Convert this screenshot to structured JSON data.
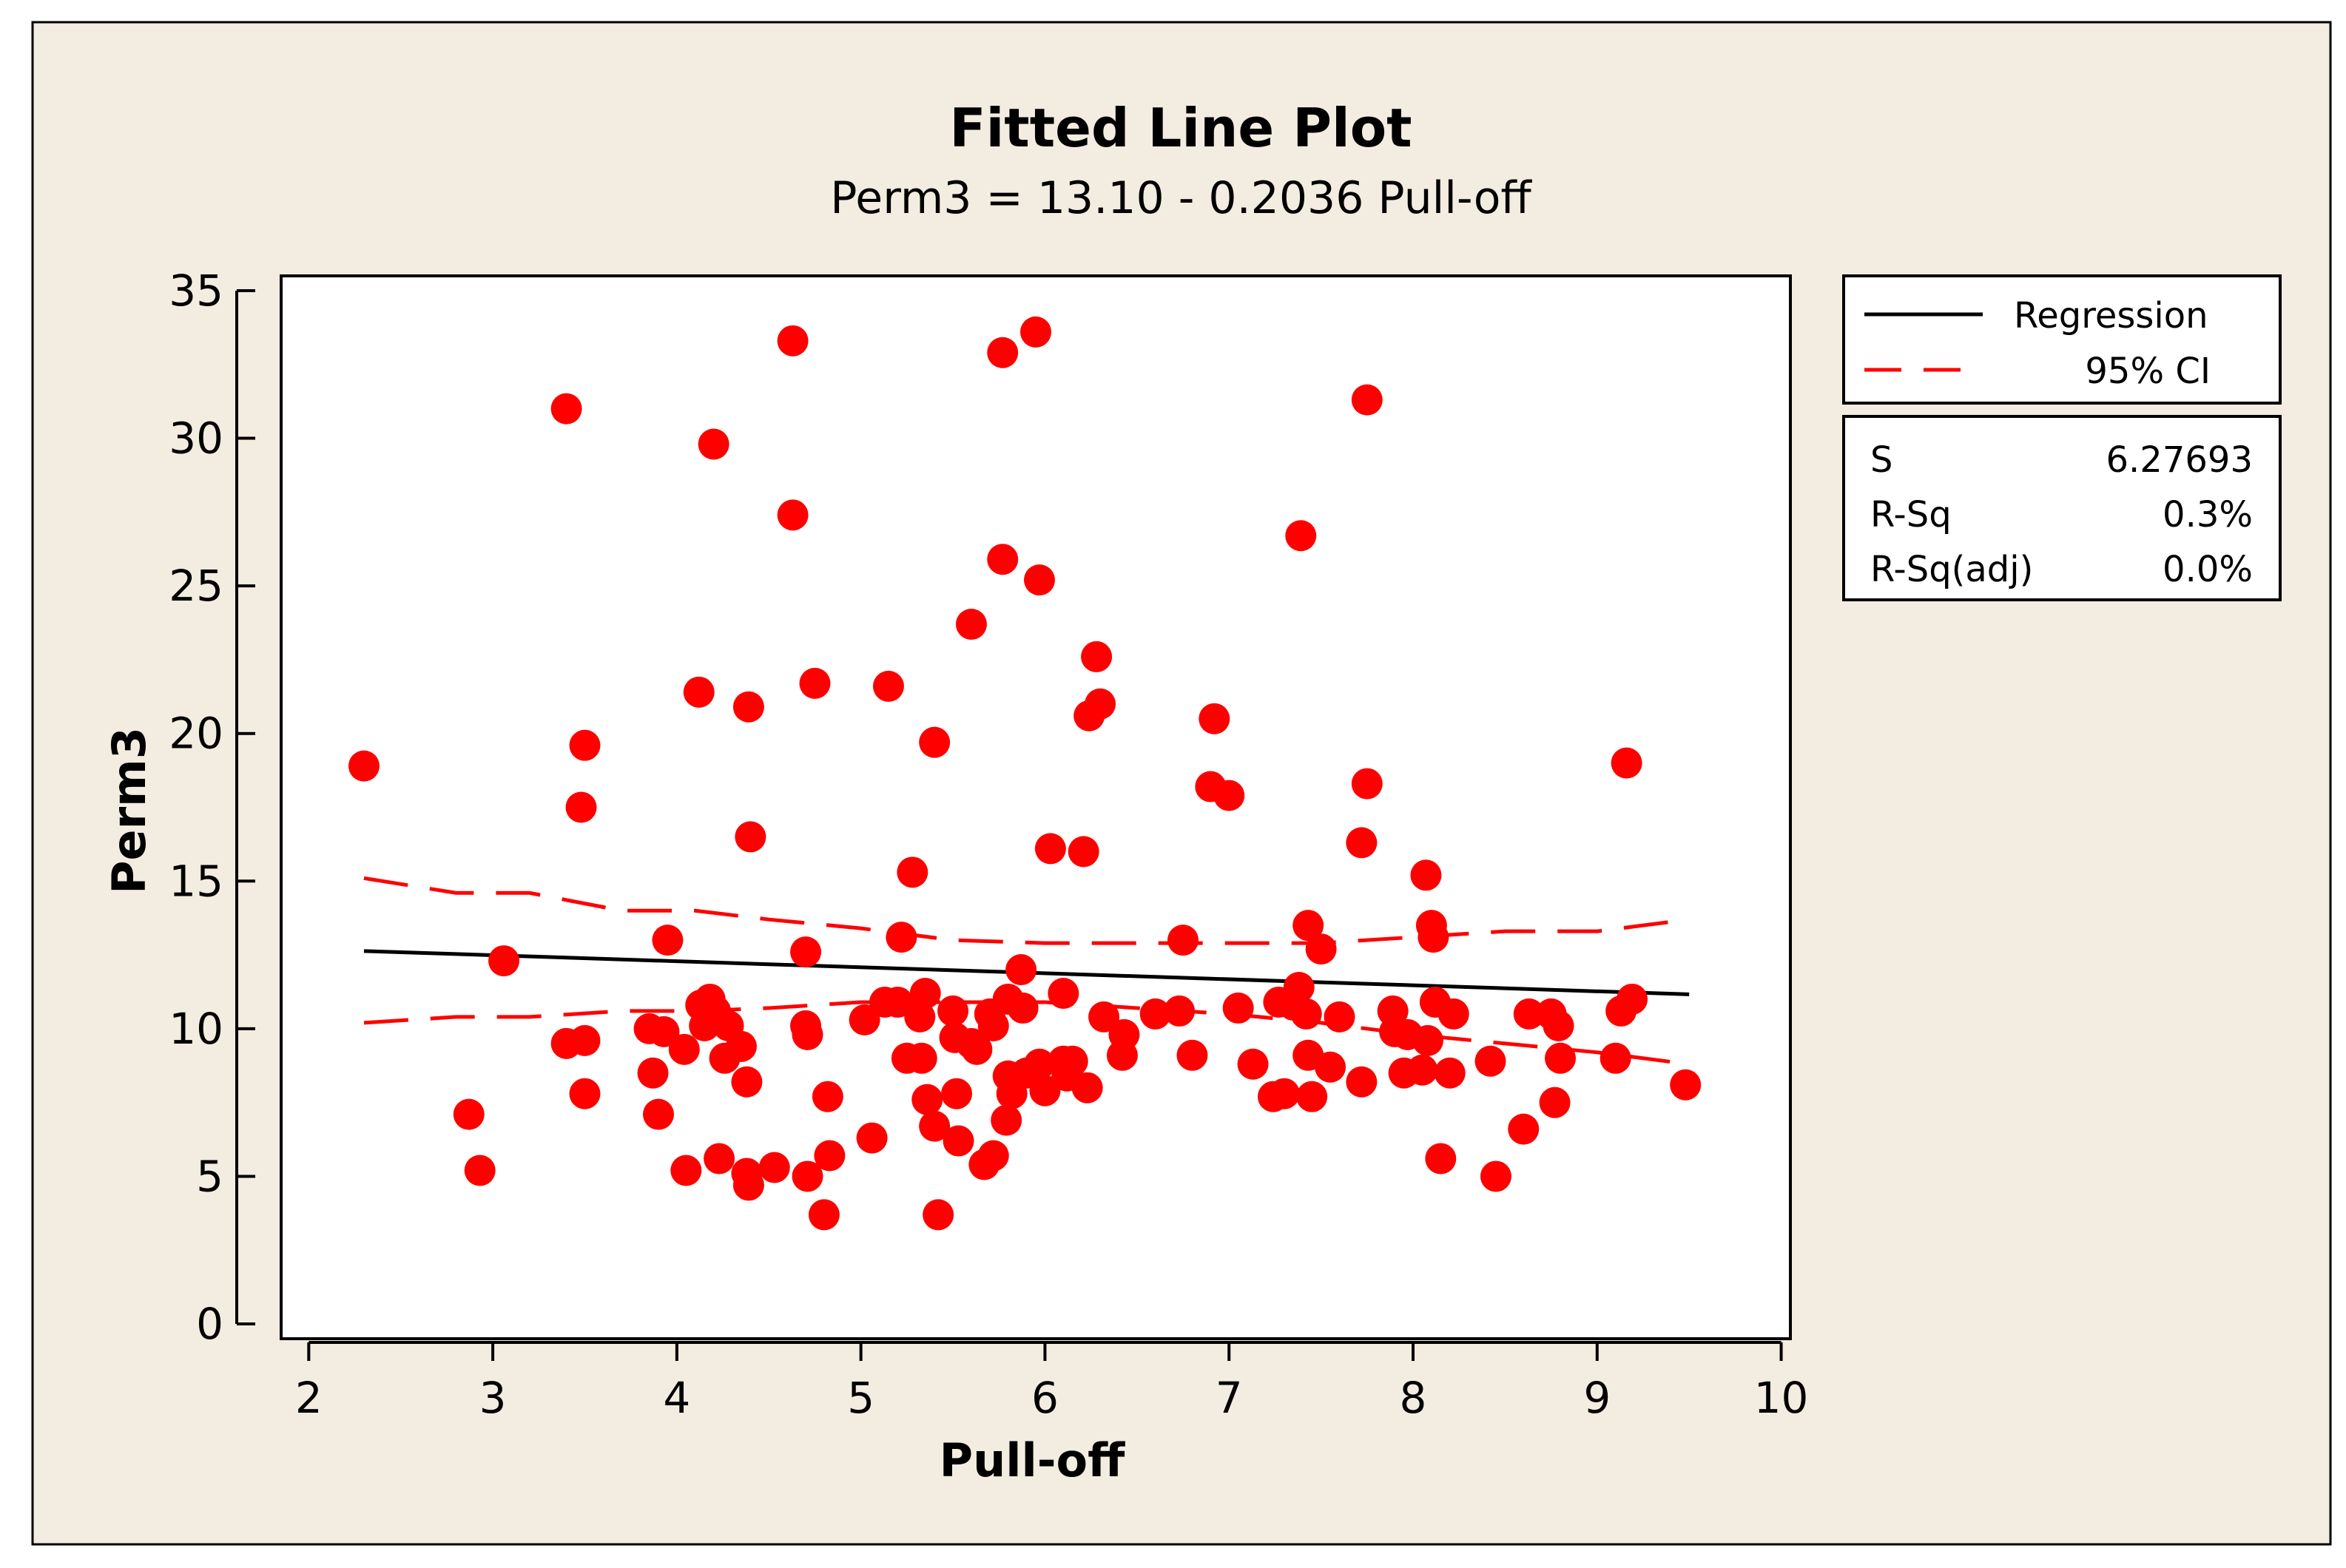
{
  "colors": {
    "frame_bg": "#F3ECE0",
    "plot_bg": "#FFFFFF",
    "point": "#FF0000",
    "regression": "#000000",
    "ci": "#FF0000"
  },
  "chart_data": {
    "type": "scatter",
    "title": "Fitted Line Plot",
    "subtitle": "Perm3 =  13.10 - 0.2036 Pull-off",
    "xlabel": "Pull-off",
    "ylabel": "Perm3",
    "xlim": [
      1.85,
      10.05
    ],
    "ylim": [
      -0.5,
      35.5
    ],
    "xticks": [
      2,
      3,
      4,
      5,
      6,
      7,
      8,
      9,
      10
    ],
    "yticks": [
      0,
      5,
      10,
      15,
      20,
      25,
      30,
      35
    ],
    "legend": {
      "position": "top-right",
      "entries": [
        {
          "label": "Regression",
          "style": "solid",
          "color": "#000000"
        },
        {
          "label": "95% CI",
          "style": "dashed",
          "color": "#FF0000"
        }
      ]
    },
    "stats": [
      {
        "label": "S",
        "value": "6.27693"
      },
      {
        "label": "R-Sq",
        "value": "0.3%"
      },
      {
        "label": "R-Sq(adj)",
        "value": "0.0%"
      }
    ],
    "regression": {
      "intercept": 13.1,
      "slope": -0.2036,
      "x_range": [
        2.3,
        9.5
      ]
    },
    "ci_upper": [
      [
        2.3,
        15.1
      ],
      [
        2.8,
        14.6
      ],
      [
        3.2,
        14.6
      ],
      [
        3.7,
        14.0
      ],
      [
        4.1,
        14.0
      ],
      [
        4.5,
        13.7
      ],
      [
        5.0,
        13.4
      ],
      [
        5.5,
        13.0
      ],
      [
        6.0,
        12.9
      ],
      [
        6.5,
        12.9
      ],
      [
        7.0,
        12.9
      ],
      [
        7.5,
        12.9
      ],
      [
        8.0,
        13.1
      ],
      [
        8.5,
        13.3
      ],
      [
        9.0,
        13.3
      ],
      [
        9.5,
        13.7
      ]
    ],
    "ci_lower": [
      [
        2.3,
        10.2
      ],
      [
        2.8,
        10.4
      ],
      [
        3.2,
        10.4
      ],
      [
        3.7,
        10.6
      ],
      [
        4.1,
        10.6
      ],
      [
        4.5,
        10.7
      ],
      [
        5.0,
        10.9
      ],
      [
        5.5,
        10.9
      ],
      [
        6.0,
        10.9
      ],
      [
        6.5,
        10.7
      ],
      [
        7.0,
        10.5
      ],
      [
        7.5,
        10.2
      ],
      [
        8.0,
        9.8
      ],
      [
        8.5,
        9.5
      ],
      [
        9.0,
        9.2
      ],
      [
        9.5,
        8.8
      ]
    ],
    "points": [
      {
        "x": 2.3,
        "y": 18.9
      },
      {
        "x": 2.87,
        "y": 7.1
      },
      {
        "x": 2.93,
        "y": 5.2
      },
      {
        "x": 3.06,
        "y": 12.3
      },
      {
        "x": 3.4,
        "y": 31.0
      },
      {
        "x": 3.4,
        "y": 9.5
      },
      {
        "x": 3.48,
        "y": 17.5
      },
      {
        "x": 3.5,
        "y": 19.6
      },
      {
        "x": 3.5,
        "y": 9.6
      },
      {
        "x": 3.5,
        "y": 7.8
      },
      {
        "x": 3.85,
        "y": 10.0
      },
      {
        "x": 3.87,
        "y": 8.5
      },
      {
        "x": 3.9,
        "y": 7.1
      },
      {
        "x": 3.93,
        "y": 9.9
      },
      {
        "x": 3.95,
        "y": 13.0
      },
      {
        "x": 4.04,
        "y": 9.3
      },
      {
        "x": 4.05,
        "y": 5.2
      },
      {
        "x": 4.12,
        "y": 21.4
      },
      {
        "x": 4.13,
        "y": 10.8
      },
      {
        "x": 4.15,
        "y": 10.1
      },
      {
        "x": 4.18,
        "y": 11.0
      },
      {
        "x": 4.2,
        "y": 29.8
      },
      {
        "x": 4.21,
        "y": 10.6
      },
      {
        "x": 4.23,
        "y": 5.6
      },
      {
        "x": 4.26,
        "y": 9.0
      },
      {
        "x": 4.28,
        "y": 10.1
      },
      {
        "x": 4.35,
        "y": 9.4
      },
      {
        "x": 4.38,
        "y": 8.2
      },
      {
        "x": 4.39,
        "y": 20.9
      },
      {
        "x": 4.4,
        "y": 16.5
      },
      {
        "x": 4.38,
        "y": 5.1
      },
      {
        "x": 4.39,
        "y": 4.7
      },
      {
        "x": 4.53,
        "y": 5.3
      },
      {
        "x": 4.63,
        "y": 33.3
      },
      {
        "x": 4.63,
        "y": 27.4
      },
      {
        "x": 4.7,
        "y": 12.6
      },
      {
        "x": 4.7,
        "y": 10.1
      },
      {
        "x": 4.71,
        "y": 9.8
      },
      {
        "x": 4.71,
        "y": 5.0
      },
      {
        "x": 4.75,
        "y": 21.7
      },
      {
        "x": 4.8,
        "y": 3.7
      },
      {
        "x": 4.82,
        "y": 7.7
      },
      {
        "x": 4.83,
        "y": 5.7
      },
      {
        "x": 5.02,
        "y": 10.3
      },
      {
        "x": 5.06,
        "y": 6.3
      },
      {
        "x": 5.13,
        "y": 10.9
      },
      {
        "x": 5.15,
        "y": 21.6
      },
      {
        "x": 5.2,
        "y": 10.9
      },
      {
        "x": 5.22,
        "y": 13.1
      },
      {
        "x": 5.25,
        "y": 9.0
      },
      {
        "x": 5.28,
        "y": 15.3
      },
      {
        "x": 5.32,
        "y": 10.4
      },
      {
        "x": 5.33,
        "y": 9.0
      },
      {
        "x": 5.35,
        "y": 11.2
      },
      {
        "x": 5.36,
        "y": 7.6
      },
      {
        "x": 5.4,
        "y": 19.7
      },
      {
        "x": 5.4,
        "y": 6.7
      },
      {
        "x": 5.42,
        "y": 3.7
      },
      {
        "x": 5.5,
        "y": 10.6
      },
      {
        "x": 5.51,
        "y": 9.7
      },
      {
        "x": 5.52,
        "y": 7.8
      },
      {
        "x": 5.53,
        "y": 6.2
      },
      {
        "x": 5.6,
        "y": 23.7
      },
      {
        "x": 5.6,
        "y": 9.5
      },
      {
        "x": 5.63,
        "y": 9.3
      },
      {
        "x": 5.67,
        "y": 5.4
      },
      {
        "x": 5.7,
        "y": 10.5
      },
      {
        "x": 5.72,
        "y": 10.1
      },
      {
        "x": 5.72,
        "y": 5.7
      },
      {
        "x": 5.77,
        "y": 32.9
      },
      {
        "x": 5.77,
        "y": 25.9
      },
      {
        "x": 5.79,
        "y": 6.9
      },
      {
        "x": 5.8,
        "y": 11.0
      },
      {
        "x": 5.8,
        "y": 8.4
      },
      {
        "x": 5.82,
        "y": 7.8
      },
      {
        "x": 5.87,
        "y": 12.0
      },
      {
        "x": 5.88,
        "y": 10.7
      },
      {
        "x": 5.9,
        "y": 8.5
      },
      {
        "x": 5.95,
        "y": 33.6
      },
      {
        "x": 5.97,
        "y": 25.2
      },
      {
        "x": 5.97,
        "y": 8.8
      },
      {
        "x": 6.0,
        "y": 7.9
      },
      {
        "x": 6.03,
        "y": 16.1
      },
      {
        "x": 6.1,
        "y": 11.2
      },
      {
        "x": 6.1,
        "y": 8.9
      },
      {
        "x": 6.12,
        "y": 8.4
      },
      {
        "x": 6.15,
        "y": 8.9
      },
      {
        "x": 6.21,
        "y": 16.0
      },
      {
        "x": 6.23,
        "y": 8.0
      },
      {
        "x": 6.24,
        "y": 20.6
      },
      {
        "x": 6.28,
        "y": 22.6
      },
      {
        "x": 6.3,
        "y": 21.0
      },
      {
        "x": 6.32,
        "y": 10.4
      },
      {
        "x": 6.42,
        "y": 9.1
      },
      {
        "x": 6.43,
        "y": 9.8
      },
      {
        "x": 6.6,
        "y": 10.5
      },
      {
        "x": 6.73,
        "y": 10.6
      },
      {
        "x": 6.75,
        "y": 13.0
      },
      {
        "x": 6.8,
        "y": 9.1
      },
      {
        "x": 6.9,
        "y": 18.2
      },
      {
        "x": 6.92,
        "y": 20.5
      },
      {
        "x": 7.0,
        "y": 17.9
      },
      {
        "x": 7.05,
        "y": 10.7
      },
      {
        "x": 7.13,
        "y": 8.8
      },
      {
        "x": 7.24,
        "y": 7.7
      },
      {
        "x": 7.27,
        "y": 10.9
      },
      {
        "x": 7.3,
        "y": 7.8
      },
      {
        "x": 7.35,
        "y": 10.8
      },
      {
        "x": 7.38,
        "y": 11.4
      },
      {
        "x": 7.39,
        "y": 26.7
      },
      {
        "x": 7.42,
        "y": 10.5
      },
      {
        "x": 7.43,
        "y": 13.5
      },
      {
        "x": 7.43,
        "y": 9.1
      },
      {
        "x": 7.45,
        "y": 7.7
      },
      {
        "x": 7.5,
        "y": 12.7
      },
      {
        "x": 7.55,
        "y": 8.7
      },
      {
        "x": 7.6,
        "y": 10.4
      },
      {
        "x": 7.72,
        "y": 16.3
      },
      {
        "x": 7.72,
        "y": 8.2
      },
      {
        "x": 7.75,
        "y": 31.3
      },
      {
        "x": 7.75,
        "y": 18.3
      },
      {
        "x": 7.89,
        "y": 10.6
      },
      {
        "x": 7.9,
        "y": 9.9
      },
      {
        "x": 7.95,
        "y": 8.5
      },
      {
        "x": 7.97,
        "y": 9.8
      },
      {
        "x": 8.05,
        "y": 8.6
      },
      {
        "x": 8.07,
        "y": 15.2
      },
      {
        "x": 8.08,
        "y": 9.6
      },
      {
        "x": 8.1,
        "y": 13.5
      },
      {
        "x": 8.11,
        "y": 13.1
      },
      {
        "x": 8.12,
        "y": 10.9
      },
      {
        "x": 8.15,
        "y": 5.6
      },
      {
        "x": 8.2,
        "y": 8.5
      },
      {
        "x": 8.22,
        "y": 10.5
      },
      {
        "x": 8.42,
        "y": 8.9
      },
      {
        "x": 8.45,
        "y": 5.0
      },
      {
        "x": 8.6,
        "y": 6.6
      },
      {
        "x": 8.63,
        "y": 10.5
      },
      {
        "x": 8.75,
        "y": 10.5
      },
      {
        "x": 8.77,
        "y": 7.5
      },
      {
        "x": 8.79,
        "y": 10.1
      },
      {
        "x": 8.8,
        "y": 9.0
      },
      {
        "x": 9.1,
        "y": 9.0
      },
      {
        "x": 9.13,
        "y": 10.6
      },
      {
        "x": 9.16,
        "y": 19.0
      },
      {
        "x": 9.19,
        "y": 11.0
      },
      {
        "x": 9.48,
        "y": 8.1
      }
    ]
  }
}
